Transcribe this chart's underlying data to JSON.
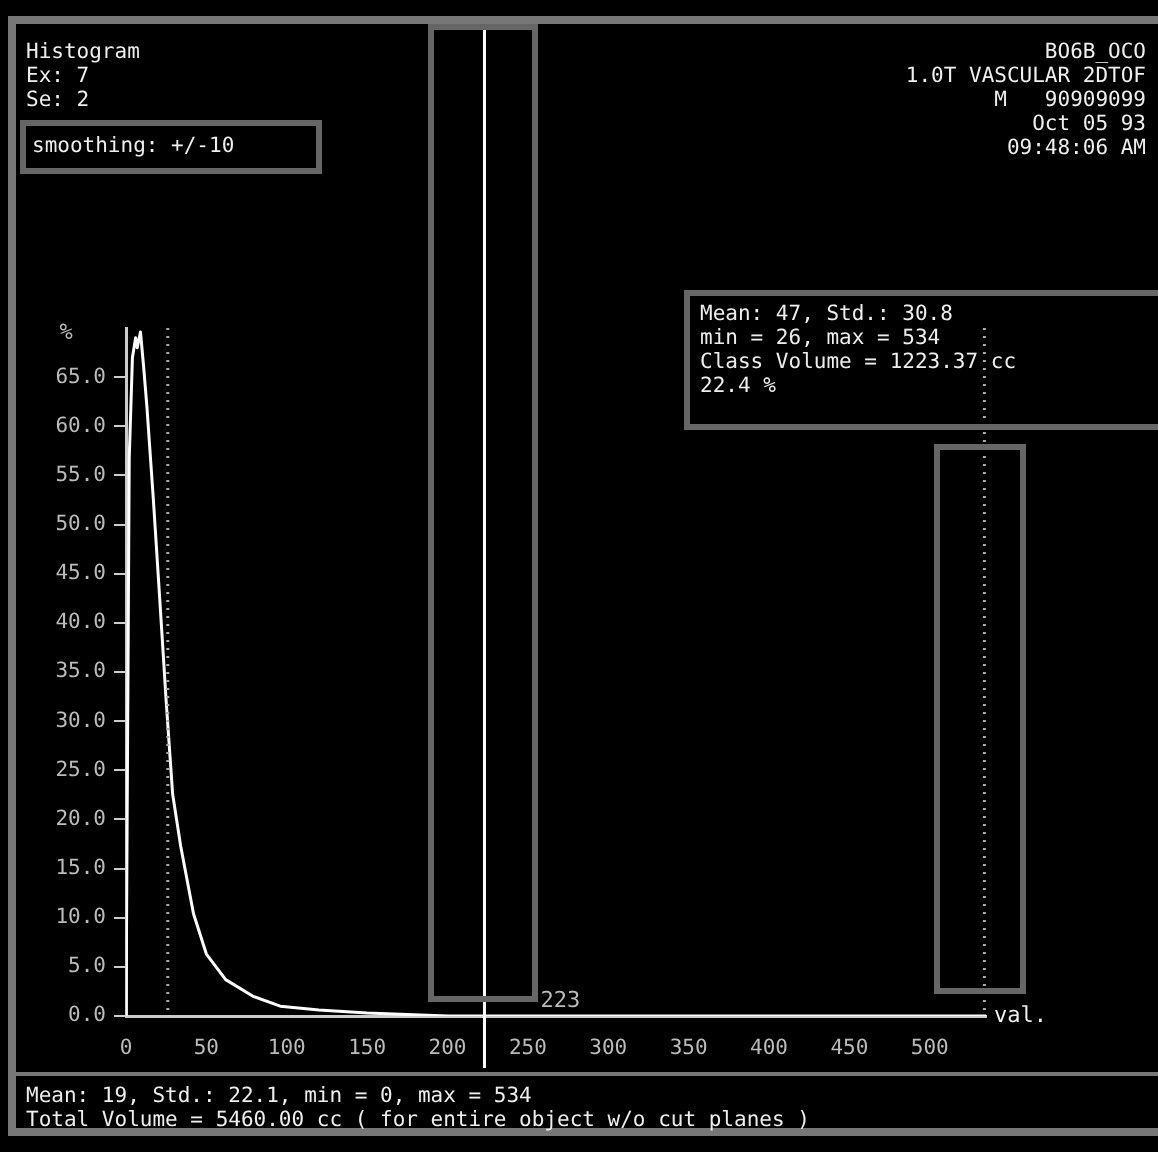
{
  "chart_data": {
    "type": "line",
    "title": "Histogram",
    "xlabel": "val.",
    "ylabel": "%",
    "x": [
      0,
      2,
      4,
      6,
      7,
      9,
      11,
      13,
      17,
      21,
      25,
      29,
      34,
      42,
      50,
      62,
      79,
      96,
      120,
      150,
      200,
      300,
      400,
      535
    ],
    "series": [
      {
        "color": "#ffffff",
        "values": [
          0,
          56.7,
          67,
          69,
          68,
          69.6,
          66,
          62,
          52.6,
          42.4,
          32,
          22.6,
          17.3,
          10.4,
          6.3,
          3.7,
          2,
          1,
          0.6,
          0.3,
          0,
          0,
          0,
          0
        ]
      }
    ],
    "xlim": [
      0,
      535
    ],
    "ylim": [
      0,
      70
    ],
    "xticks": [
      0,
      50,
      100,
      150,
      200,
      250,
      300,
      350,
      400,
      450,
      500
    ],
    "yticks": [
      {
        "value": 0,
        "label": "0.0"
      },
      {
        "value": 5,
        "label": "5.0"
      },
      {
        "value": 10,
        "label": "10.0"
      },
      {
        "value": 15,
        "label": "15.0"
      },
      {
        "value": 20,
        "label": "20.0"
      },
      {
        "value": 25,
        "label": "25.0"
      },
      {
        "value": 30,
        "label": "30.0"
      },
      {
        "value": 35,
        "label": "35.0"
      },
      {
        "value": 40,
        "label": "40.0"
      },
      {
        "value": 45,
        "label": "45.0"
      },
      {
        "value": 50,
        "label": "50.0"
      },
      {
        "value": 55,
        "label": "55.0"
      },
      {
        "value": 60,
        "label": "60.0"
      },
      {
        "value": 65,
        "label": "65.0"
      }
    ],
    "grid": false,
    "marker": "none",
    "ref_lines": [
      {
        "axis": "x",
        "value": 223,
        "label": "223",
        "color": "#ffffff",
        "line_style": "solid"
      },
      {
        "axis": "x",
        "value": 26,
        "color": "#aaaaaa",
        "line_style": "dotted"
      },
      {
        "axis": "x",
        "value": 534,
        "color": "#aaaaaa",
        "line_style": "dotted"
      }
    ],
    "annotations": [
      "Ex: 7",
      "Se: 2",
      "smoothing: +/-10",
      "BO6B_OCO",
      "1.0T VASCULAR 2DTOF",
      "M   90909099",
      "Oct 05 93",
      "09:48:06 AM",
      "Mean: 47, Std.: 30.8",
      "min = 26, max = 534",
      "Class Volume = 1223.37 cc",
      "22.4 %",
      "Mean: 19, Std.: 22.1, min = 0, max = 534",
      "Total Volume = 5460.00 cc ( for entire object w/o cut planes )"
    ]
  }
}
